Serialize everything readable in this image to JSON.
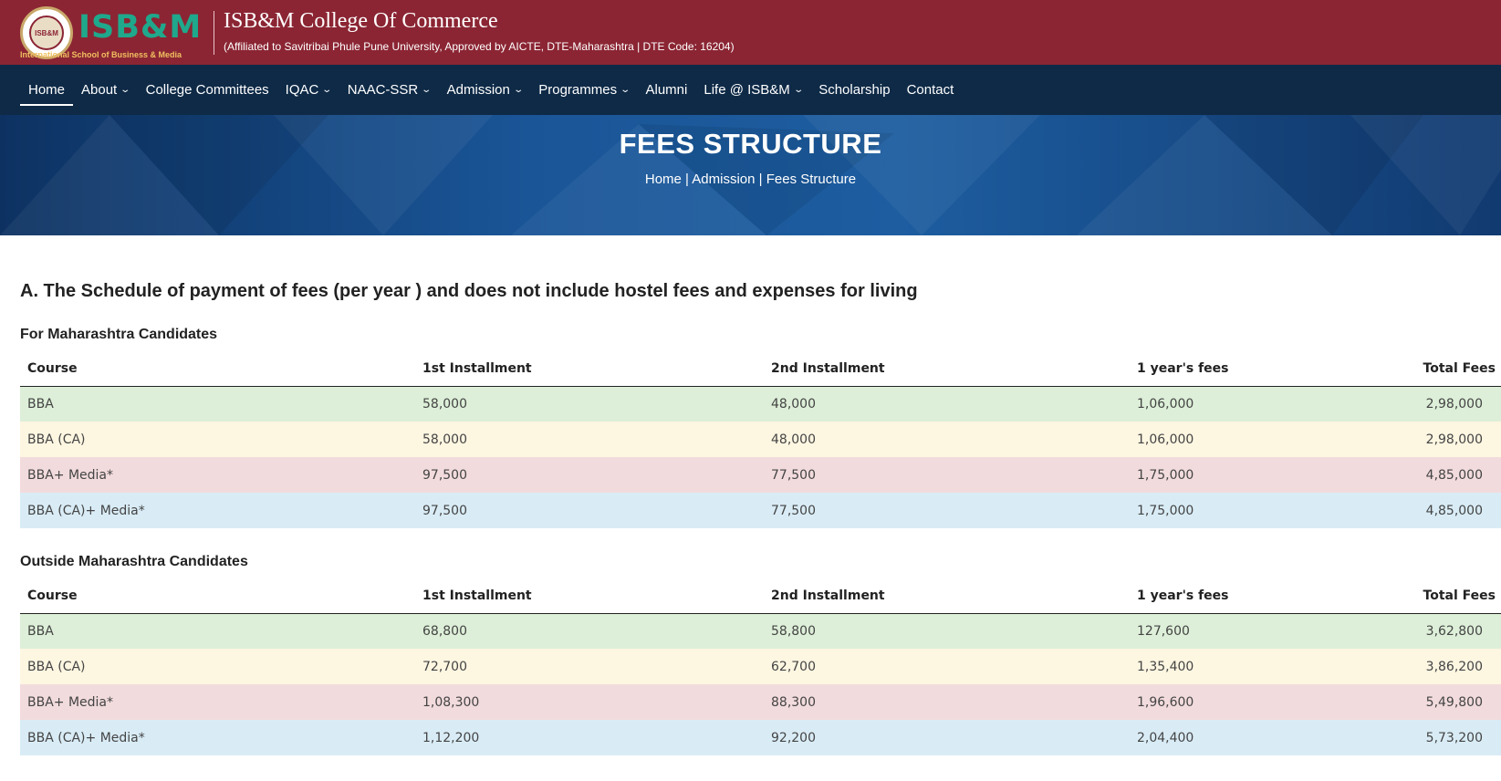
{
  "header": {
    "logo_text": "ISB&M",
    "logo_subtitle": "International School of Business & Media",
    "college_name": "ISB&M College Of Commerce",
    "affiliation": "(Affiliated to Savitribai Phule Pune University, Approved by AICTE, DTE-Maharashtra | DTE Code: 16204)"
  },
  "nav": {
    "items": [
      {
        "label": "Home",
        "dropdown": false,
        "active": true
      },
      {
        "label": "About",
        "dropdown": true
      },
      {
        "label": "College Committees",
        "dropdown": false
      },
      {
        "label": "IQAC",
        "dropdown": true
      },
      {
        "label": "NAAC-SSR",
        "dropdown": true
      },
      {
        "label": "Admission",
        "dropdown": true
      },
      {
        "label": "Programmes",
        "dropdown": true
      },
      {
        "label": "Alumni",
        "dropdown": false
      },
      {
        "label": "Life @ ISB&M",
        "dropdown": true
      },
      {
        "label": "Scholarship",
        "dropdown": false
      },
      {
        "label": "Contact",
        "dropdown": false
      }
    ]
  },
  "banner": {
    "title": "FEES STRUCTURE",
    "breadcrumb": [
      "Home",
      "Admission",
      "Fees Structure"
    ],
    "separator": " | "
  },
  "main": {
    "section_title": "A. The Schedule of payment of fees (per year ) and does not include hostel fees and expenses for living",
    "tables": [
      {
        "title": "For Maharashtra Candidates",
        "headers": [
          "Course",
          "1st Installment",
          "2nd Installment",
          "1 year's fees",
          "Total Fees"
        ],
        "rows": [
          [
            "BBA",
            "58,000",
            "48,000",
            "1,06,000",
            "2,98,000"
          ],
          [
            "BBA (CA)",
            "58,000",
            "48,000",
            "1,06,000",
            "2,98,000"
          ],
          [
            "BBA+ Media*",
            "97,500",
            "77,500",
            "1,75,000",
            "4,85,000"
          ],
          [
            "BBA (CA)+ Media*",
            "97,500",
            "77,500",
            "1,75,000",
            "4,85,000"
          ]
        ]
      },
      {
        "title": "Outside Maharashtra Candidates",
        "headers": [
          "Course",
          "1st Installment",
          "2nd Installment",
          "1 year's fees",
          "Total Fees"
        ],
        "rows": [
          [
            "BBA",
            "68,800",
            "58,800",
            "127,600",
            "3,62,800"
          ],
          [
            "BBA (CA)",
            "72,700",
            "62,700",
            "1,35,400",
            "3,86,200"
          ],
          [
            "BBA+ Media*",
            "1,08,300",
            "88,300",
            "1,96,600",
            "5,49,800"
          ],
          [
            "BBA (CA)+ Media*",
            "1,12,200",
            "92,200",
            "2,04,400",
            "5,73,200"
          ]
        ]
      }
    ]
  },
  "colors": {
    "header_bg": "#8b2533",
    "nav_bg": "#0e2a47",
    "logo_accent": "#1fa88c",
    "row_green": "#ddefd8",
    "row_yellow": "#fdf6e1",
    "row_red": "#f2dbdd",
    "row_blue": "#d9ecf6"
  }
}
